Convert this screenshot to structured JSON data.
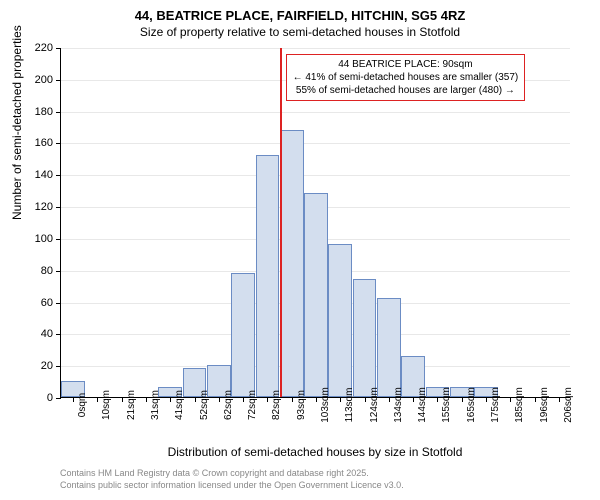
{
  "chart": {
    "type": "histogram",
    "title": "44, BEATRICE PLACE, FAIRFIELD, HITCHIN, SG5 4RZ",
    "subtitle": "Size of property relative to semi-detached houses in Stotfold",
    "ylabel": "Number of semi-detached properties",
    "xlabel": "Distribution of semi-detached houses by size in Stotfold",
    "background_color": "#ffffff",
    "grid_color": "#e8e8e8",
    "bar_fill": "#d3deee",
    "bar_border": "#6b8cc4",
    "vline_color": "#d22",
    "callout_border": "#d22",
    "ylim": [
      0,
      220
    ],
    "ytick_step": 20,
    "yticks": [
      0,
      20,
      40,
      60,
      80,
      100,
      120,
      140,
      160,
      180,
      200,
      220
    ],
    "x_categories": [
      "0sqm",
      "10sqm",
      "21sqm",
      "31sqm",
      "41sqm",
      "52sqm",
      "62sqm",
      "72sqm",
      "82sqm",
      "93sqm",
      "103sqm",
      "113sqm",
      "124sqm",
      "134sqm",
      "144sqm",
      "155sqm",
      "165sqm",
      "175sqm",
      "185sqm",
      "196sqm",
      "206sqm"
    ],
    "values": [
      10,
      0,
      0,
      0,
      6,
      18,
      20,
      78,
      152,
      168,
      128,
      96,
      74,
      62,
      26,
      6,
      6,
      6,
      0,
      0,
      0
    ],
    "vline_index": 9,
    "callout": {
      "line1": "44 BEATRICE PLACE: 90sqm",
      "line2": "← 41% of semi-detached houses are smaller (357)",
      "line3": "55% of semi-detached houses are larger (480) →"
    },
    "attribution_line1": "Contains HM Land Registry data © Crown copyright and database right 2025.",
    "attribution_line2": "Contains public sector information licensed under the Open Government Licence v3.0.",
    "title_fontsize": 13,
    "subtitle_fontsize": 12,
    "label_fontsize": 12,
    "tick_fontsize": 11,
    "xtick_fontsize": 10,
    "callout_fontsize": 10,
    "attribution_fontsize": 9
  }
}
